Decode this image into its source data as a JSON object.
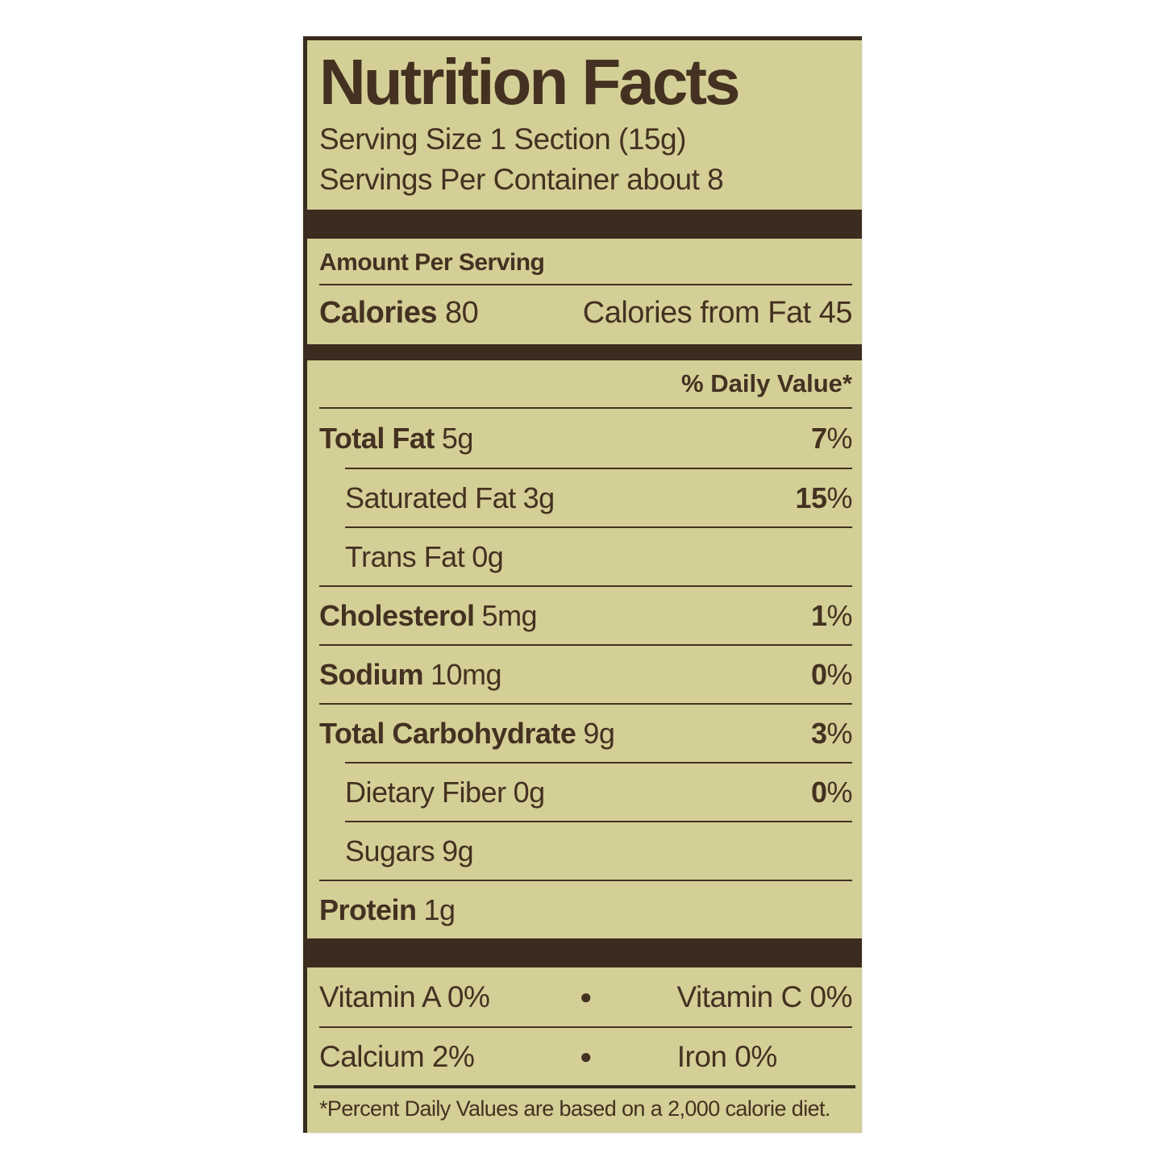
{
  "label": {
    "title": "Nutrition Facts",
    "serving_size": "Serving Size 1 Section (15g)",
    "servings_per_container": "Servings Per Container about 8",
    "amount_per_serving": "Amount Per Serving",
    "calories_label": "Calories",
    "calories_value": "80",
    "calories_from_fat": "Calories from Fat 45",
    "daily_value_header": "% Daily Value*",
    "nutrients": [
      {
        "name": "Total Fat",
        "amount": "5g",
        "dv": "7",
        "dv_suffix": "%"
      },
      {
        "name": "Saturated Fat",
        "amount": "3g",
        "dv": "15",
        "dv_suffix": "%"
      },
      {
        "name": "Trans Fat",
        "amount": "0g",
        "dv": "",
        "dv_suffix": ""
      },
      {
        "name": "Cholesterol",
        "amount": "5mg",
        "dv": "1",
        "dv_suffix": "%"
      },
      {
        "name": "Sodium",
        "amount": "10mg",
        "dv": "0",
        "dv_suffix": "%"
      },
      {
        "name": "Total Carbohydrate",
        "amount": "9g",
        "dv": "3",
        "dv_suffix": "%"
      },
      {
        "name": "Dietary Fiber",
        "amount": "0g",
        "dv": "0",
        "dv_suffix": "%"
      },
      {
        "name": "Sugars",
        "amount": "9g",
        "dv": "",
        "dv_suffix": ""
      },
      {
        "name": "Protein",
        "amount": "1g",
        "dv": "",
        "dv_suffix": ""
      }
    ],
    "bullet": "●",
    "micronutrients": [
      {
        "left": "Vitamin A 0%",
        "right": "Vitamin C 0%"
      },
      {
        "left": "Calcium 2%",
        "right": "Iron 0%"
      }
    ],
    "footnote": "*Percent Daily Values are based on a 2,000 calorie diet.",
    "colors": {
      "background": "#d3cf96",
      "ink": "#443121",
      "bar": "#3a2c1e",
      "page_background": "#ffffff"
    }
  }
}
